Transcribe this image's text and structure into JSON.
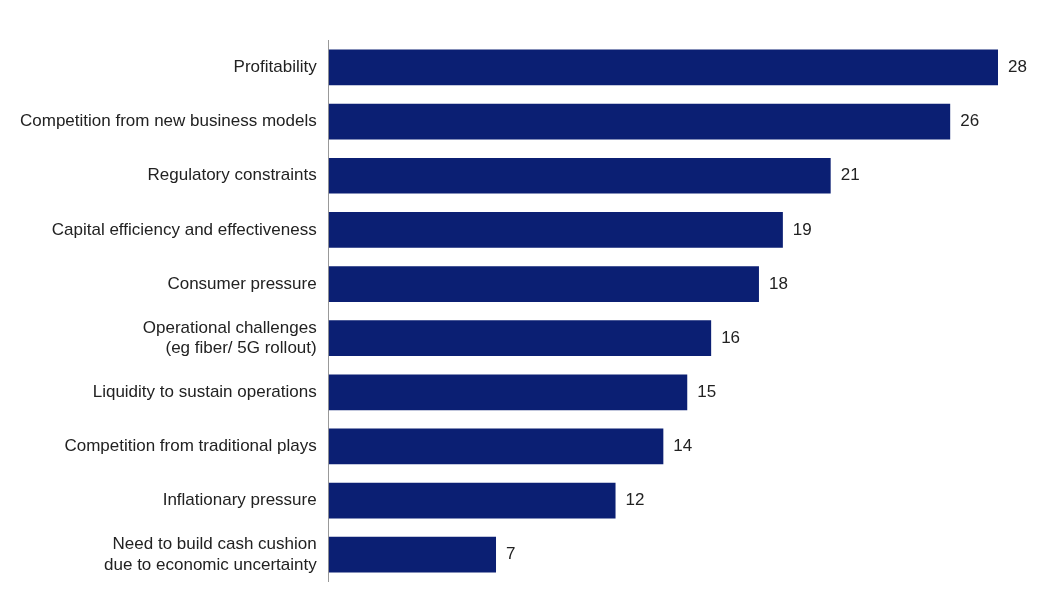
{
  "chart_data": {
    "type": "bar",
    "orientation": "horizontal",
    "data_labels": true,
    "grid": false,
    "legend": false,
    "tick_labels": "y",
    "categories": [
      "Profitability",
      "Competition from new business models",
      "Regulatory constraints",
      "Capital efficiency and effectiveness",
      "Consumer pressure",
      "Operational challenges\n(eg fiber/ 5G rollout)",
      "Liquidity to sustain operations",
      "Competition from traditional plays",
      "Inflationary pressure",
      "Need to build cash cushion\ndue to economic uncertainty"
    ],
    "values": [
      28,
      26,
      21,
      19,
      18,
      16,
      15,
      14,
      12,
      7
    ],
    "color": "#0b1f73"
  }
}
